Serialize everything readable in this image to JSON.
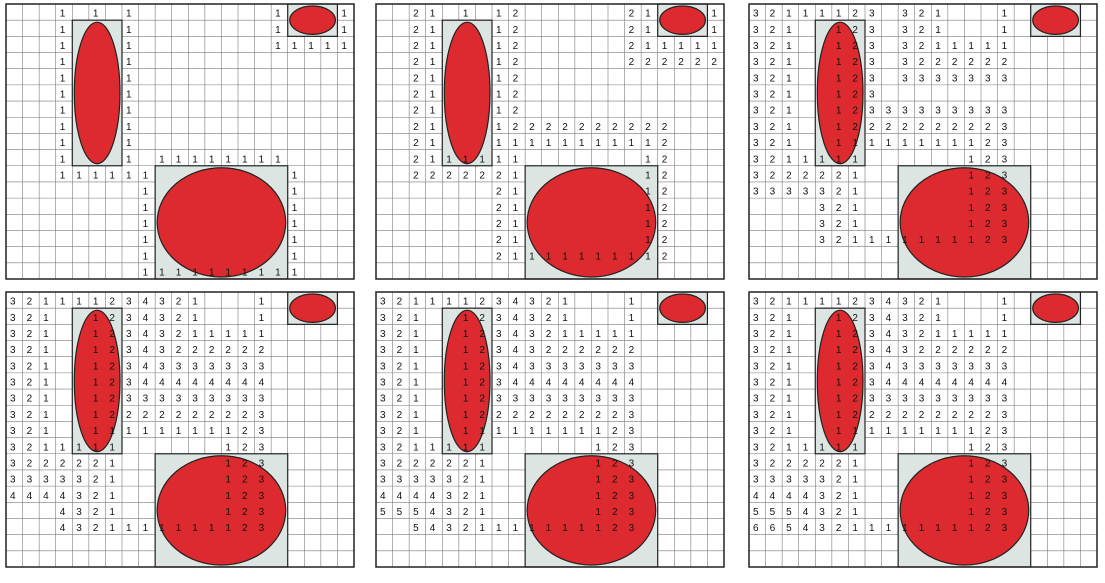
{
  "grid": {
    "rows": 17,
    "cols": 21
  },
  "colors": {
    "obstacle_fill": "#dc2a2e",
    "obstacle_box": "#dde5e2",
    "grid_line": "#7a7a7a",
    "border": "#222222"
  },
  "obstacles": [
    {
      "name": "vertical-ellipse-obstacle",
      "shape": "ellipse",
      "r0": 1,
      "c0": 4,
      "r1": 10,
      "c1": 7
    },
    {
      "name": "small-circle-obstacle",
      "shape": "ellipse",
      "r0": 0,
      "c0": 17,
      "r1": 2,
      "c1": 20
    },
    {
      "name": "large-ellipse-obstacle",
      "shape": "ellipse",
      "r0": 10,
      "c0": 9,
      "r1": 17,
      "c1": 17
    }
  ],
  "panels": [
    {
      "name": "panel-step-1",
      "labels": [
        "r0c3:1",
        "r0c5:1",
        "r0c7:1",
        "r0c16:1",
        "r0c20:1",
        "r1c3:1",
        "r1c7:1",
        "r1c16:1",
        "r1c20:1",
        "r2c3:1",
        "r2c7:1",
        "r2c16:1",
        "r2c17:1",
        "r2c18:1",
        "r2c19:1",
        "r2c20:1",
        "r3c3:1",
        "r3c7:1",
        "r4c3:1",
        "r4c7:1",
        "r5c3:1",
        "r5c7:1",
        "r6c3:1",
        "r6c7:1",
        "r7c3:1",
        "r7c7:1",
        "r8c3:1",
        "r8c7:1",
        "r9c3:1",
        "r9c7:1",
        "r9c9:1",
        "r9c10:1",
        "r9c11:1",
        "r9c12:1",
        "r9c13:1",
        "r9c14:1",
        "r9c15:1",
        "r9c16:1",
        "r10c3:1",
        "r10c4:1",
        "r10c5:1",
        "r10c6:1",
        "r10c7:1",
        "r10c8:1",
        "r10c17:1",
        "r11c8:1",
        "r11c17:1",
        "r12c8:1",
        "r12c17:1",
        "r13c8:1",
        "r13c17:1",
        "r14c8:1",
        "r14c17:1",
        "r15c8:1",
        "r15c17:1",
        "r16c8:1",
        "r16c9:1",
        "r16c10:1",
        "r16c11:1",
        "r16c12:1",
        "r16c13:1",
        "r16c14:1",
        "r16c15:1",
        "r16c16:1",
        "r16c17:1"
      ]
    },
    {
      "name": "panel-step-2",
      "labels": [
        "r0c2:2",
        "r0c3:1",
        "r0c5:1",
        "r0c7:1",
        "r0c8:2",
        "r0c15:2",
        "r0c16:1",
        "r0c20:1",
        "r1c2:2",
        "r1c3:1",
        "r1c7:1",
        "r1c8:2",
        "r1c15:2",
        "r1c16:1",
        "r1c20:1",
        "r2c2:2",
        "r2c3:1",
        "r2c7:1",
        "r2c8:2",
        "r2c15:2",
        "r2c16:1",
        "r2c17:1",
        "r2c18:1",
        "r2c19:1",
        "r2c20:1",
        "r3c2:2",
        "r3c3:1",
        "r3c7:1",
        "r3c8:2",
        "r3c15:2",
        "r3c16:2",
        "r3c17:2",
        "r3c18:2",
        "r3c19:2",
        "r3c20:2",
        "r4c2:2",
        "r4c3:1",
        "r4c7:1",
        "r4c8:2",
        "r5c2:2",
        "r5c3:1",
        "r5c7:1",
        "r5c8:2",
        "r6c2:2",
        "r6c3:1",
        "r6c7:1",
        "r6c8:2",
        "r7c2:2",
        "r7c3:1",
        "r7c7:1",
        "r7c8:2",
        "r7c9:2",
        "r7c10:2",
        "r7c11:2",
        "r7c12:2",
        "r7c13:2",
        "r7c14:2",
        "r7c15:2",
        "r7c16:2",
        "r7c17:2",
        "r8c2:2",
        "r8c3:1",
        "r8c7:1",
        "r8c8:1",
        "r8c9:1",
        "r8c10:1",
        "r8c11:1",
        "r8c12:1",
        "r8c13:1",
        "r8c14:1",
        "r8c15:1",
        "r8c16:1",
        "r8c17:2",
        "r9c2:2",
        "r9c3:1",
        "r9c4:1",
        "r9c5:1",
        "r9c6:1",
        "r9c7:1",
        "r9c8:1",
        "r9c16:1",
        "r9c17:2",
        "r10c2:2",
        "r10c3:2",
        "r10c4:2",
        "r10c5:2",
        "r10c6:2",
        "r10c7:2",
        "r10c8:1",
        "r10c16:1",
        "r10c17:2",
        "r11c7:2",
        "r11c8:1",
        "r11c16:1",
        "r11c17:2",
        "r12c7:2",
        "r12c8:1",
        "r12c16:1",
        "r12c17:2",
        "r13c7:2",
        "r13c8:1",
        "r13c16:1",
        "r13c17:2",
        "r14c7:2",
        "r14c8:1",
        "r14c16:1",
        "r14c17:2",
        "r15c7:2",
        "r15c8:1",
        "r15c9:1",
        "r15c10:1",
        "r15c11:1",
        "r15c12:1",
        "r15c13:1",
        "r15c14:1",
        "r15c15:1",
        "r15c16:1",
        "r15c17:2"
      ]
    },
    {
      "name": "panel-step-3",
      "labels": [
        "r0c0:3",
        "r0c1:2",
        "r0c2:1",
        "r0c3:1",
        "r0c4:1",
        "r0c5:1",
        "r0c6:2",
        "r0c7:3",
        "r0c9:3",
        "r0c10:2",
        "r0c11:1",
        "r0c15:1",
        "r1c0:3",
        "r1c1:2",
        "r1c2:1",
        "r1c5:1",
        "r1c6:2",
        "r1c7:3",
        "r1c9:3",
        "r1c10:2",
        "r1c11:1",
        "r1c15:1",
        "r2c0:3",
        "r2c1:2",
        "r2c2:1",
        "r2c5:1",
        "r2c6:2",
        "r2c7:3",
        "r2c9:3",
        "r2c10:2",
        "r2c11:1",
        "r2c12:1",
        "r2c13:1",
        "r2c14:1",
        "r2c15:1",
        "r3c0:3",
        "r3c1:2",
        "r3c2:1",
        "r3c5:1",
        "r3c6:2",
        "r3c7:3",
        "r3c9:3",
        "r3c10:2",
        "r3c11:2",
        "r3c12:2",
        "r3c13:2",
        "r3c14:2",
        "r3c15:2",
        "r4c0:3",
        "r4c1:2",
        "r4c2:1",
        "r4c5:1",
        "r4c6:2",
        "r4c7:3",
        "r4c9:3",
        "r4c10:3",
        "r4c11:3",
        "r4c12:3",
        "r4c13:3",
        "r4c14:3",
        "r4c15:3",
        "r5c0:3",
        "r5c1:2",
        "r5c2:1",
        "r5c5:1",
        "r5c6:2",
        "r5c7:3",
        "r6c0:3",
        "r6c1:2",
        "r6c2:1",
        "r6c5:1",
        "r6c6:2",
        "r6c7:3",
        "r6c8:3",
        "r6c9:3",
        "r6c10:3",
        "r6c11:3",
        "r6c12:3",
        "r6c13:3",
        "r6c14:3",
        "r6c15:3",
        "r7c0:3",
        "r7c1:2",
        "r7c2:1",
        "r7c5:1",
        "r7c6:2",
        "r7c7:2",
        "r7c8:2",
        "r7c9:2",
        "r7c10:2",
        "r7c11:2",
        "r7c12:2",
        "r7c13:2",
        "r7c14:2",
        "r7c15:3",
        "r8c0:3",
        "r8c1:2",
        "r8c2:1",
        "r8c5:1",
        "r8c6:1",
        "r8c7:1",
        "r8c8:1",
        "r8c9:1",
        "r8c10:1",
        "r8c11:1",
        "r8c12:1",
        "r8c13:1",
        "r8c14:2",
        "r8c15:3",
        "r9c0:3",
        "r9c1:2",
        "r9c2:1",
        "r9c3:1",
        "r9c4:1",
        "r9c5:1",
        "r9c6:1",
        "r9c13:1",
        "r9c14:2",
        "r9c15:3",
        "r10c0:3",
        "r10c1:2",
        "r10c2:2",
        "r10c3:2",
        "r10c4:2",
        "r10c5:2",
        "r10c6:1",
        "r10c13:1",
        "r10c14:2",
        "r10c15:3",
        "r11c0:3",
        "r11c1:3",
        "r11c2:3",
        "r11c3:3",
        "r11c4:3",
        "r11c5:2",
        "r11c6:1",
        "r11c13:1",
        "r11c14:2",
        "r11c15:3",
        "r12c4:3",
        "r12c5:2",
        "r12c6:1",
        "r12c13:1",
        "r12c14:2",
        "r12c15:3",
        "r13c4:3",
        "r13c5:2",
        "r13c6:1",
        "r13c13:1",
        "r13c14:2",
        "r13c15:3",
        "r14c4:3",
        "r14c5:2",
        "r14c6:1",
        "r14c7:1",
        "r14c8:1",
        "r14c9:1",
        "r14c10:1",
        "r14c11:1",
        "r14c12:1",
        "r14c13:1",
        "r14c14:2",
        "r14c15:3"
      ]
    },
    {
      "name": "panel-step-4",
      "labels": [
        "r0c0:3",
        "r0c1:2",
        "r0c2:1",
        "r0c3:1",
        "r0c4:1",
        "r0c5:1",
        "r0c6:2",
        "r0c7:3",
        "r0c8:4",
        "r0c9:3",
        "r0c10:2",
        "r0c11:1",
        "r0c15:1",
        "r1c0:3",
        "r1c1:2",
        "r1c2:1",
        "r1c5:1",
        "r1c6:2",
        "r1c7:3",
        "r1c8:4",
        "r1c9:3",
        "r1c10:2",
        "r1c11:1",
        "r1c15:1",
        "r2c0:3",
        "r2c1:2",
        "r2c2:1",
        "r2c5:1",
        "r2c6:2",
        "r2c7:3",
        "r2c8:4",
        "r2c9:3",
        "r2c10:2",
        "r2c11:1",
        "r2c12:1",
        "r2c13:1",
        "r2c14:1",
        "r2c15:1",
        "r3c0:3",
        "r3c1:2",
        "r3c2:1",
        "r3c5:1",
        "r3c6:2",
        "r3c7:3",
        "r3c8:4",
        "r3c9:3",
        "r3c10:2",
        "r3c11:2",
        "r3c12:2",
        "r3c13:2",
        "r3c14:2",
        "r3c15:2",
        "r4c0:3",
        "r4c1:2",
        "r4c2:1",
        "r4c5:1",
        "r4c6:2",
        "r4c7:3",
        "r4c8:4",
        "r4c9:3",
        "r4c10:3",
        "r4c11:3",
        "r4c12:3",
        "r4c13:3",
        "r4c14:3",
        "r4c15:3",
        "r5c0:3",
        "r5c1:2",
        "r5c2:1",
        "r5c5:1",
        "r5c6:2",
        "r5c7:3",
        "r5c8:4",
        "r5c9:4",
        "r5c10:4",
        "r5c11:4",
        "r5c12:4",
        "r5c13:4",
        "r5c14:4",
        "r5c15:4",
        "r6c0:3",
        "r6c1:2",
        "r6c2:1",
        "r6c5:1",
        "r6c6:2",
        "r6c7:3",
        "r6c8:3",
        "r6c9:3",
        "r6c10:3",
        "r6c11:3",
        "r6c12:3",
        "r6c13:3",
        "r6c14:3",
        "r6c15:3",
        "r7c0:3",
        "r7c1:2",
        "r7c2:1",
        "r7c5:1",
        "r7c6:2",
        "r7c7:2",
        "r7c8:2",
        "r7c9:2",
        "r7c10:2",
        "r7c11:2",
        "r7c12:2",
        "r7c13:2",
        "r7c14:2",
        "r7c15:3",
        "r8c0:3",
        "r8c1:2",
        "r8c2:1",
        "r8c5:1",
        "r8c6:1",
        "r8c7:1",
        "r8c8:1",
        "r8c9:1",
        "r8c10:1",
        "r8c11:1",
        "r8c12:1",
        "r8c13:1",
        "r8c14:2",
        "r8c15:3",
        "r9c0:3",
        "r9c1:2",
        "r9c2:1",
        "r9c3:1",
        "r9c4:1",
        "r9c5:1",
        "r9c6:1",
        "r9c13:1",
        "r9c14:2",
        "r9c15:3",
        "r10c0:3",
        "r10c1:2",
        "r10c2:2",
        "r10c3:2",
        "r10c4:2",
        "r10c5:2",
        "r10c6:1",
        "r10c13:1",
        "r10c14:2",
        "r10c15:3",
        "r11c0:3",
        "r11c1:3",
        "r11c2:3",
        "r11c3:3",
        "r11c4:3",
        "r11c5:2",
        "r11c6:1",
        "r11c13:1",
        "r11c14:2",
        "r11c15:3",
        "r12c0:4",
        "r12c1:4",
        "r12c2:4",
        "r12c3:4",
        "r12c4:3",
        "r12c5:2",
        "r12c6:1",
        "r12c13:1",
        "r12c14:2",
        "r12c15:3",
        "r13c3:4",
        "r13c4:3",
        "r13c5:2",
        "r13c6:1",
        "r13c13:1",
        "r13c14:2",
        "r13c15:3",
        "r14c3:4",
        "r14c4:3",
        "r14c5:2",
        "r14c6:1",
        "r14c7:1",
        "r14c8:1",
        "r14c9:1",
        "r14c10:1",
        "r14c11:1",
        "r14c12:1",
        "r14c13:1",
        "r14c14:2",
        "r14c15:3"
      ]
    },
    {
      "name": "panel-step-5",
      "labels": [
        "r0c0:3",
        "r0c1:2",
        "r0c2:1",
        "r0c3:1",
        "r0c4:1",
        "r0c5:1",
        "r0c6:2",
        "r0c7:3",
        "r0c8:4",
        "r0c9:3",
        "r0c10:2",
        "r0c11:1",
        "r0c15:1",
        "r1c0:3",
        "r1c1:2",
        "r1c2:1",
        "r1c5:1",
        "r1c6:2",
        "r1c7:3",
        "r1c8:4",
        "r1c9:3",
        "r1c10:2",
        "r1c11:1",
        "r1c15:1",
        "r2c0:3",
        "r2c1:2",
        "r2c2:1",
        "r2c5:1",
        "r2c6:2",
        "r2c7:3",
        "r2c8:4",
        "r2c9:3",
        "r2c10:2",
        "r2c11:1",
        "r2c12:1",
        "r2c13:1",
        "r2c14:1",
        "r2c15:1",
        "r3c0:3",
        "r3c1:2",
        "r3c2:1",
        "r3c5:1",
        "r3c6:2",
        "r3c7:3",
        "r3c8:4",
        "r3c9:3",
        "r3c10:2",
        "r3c11:2",
        "r3c12:2",
        "r3c13:2",
        "r3c14:2",
        "r3c15:2",
        "r4c0:3",
        "r4c1:2",
        "r4c2:1",
        "r4c5:1",
        "r4c6:2",
        "r4c7:3",
        "r4c8:4",
        "r4c9:3",
        "r4c10:3",
        "r4c11:3",
        "r4c12:3",
        "r4c13:3",
        "r4c14:3",
        "r4c15:3",
        "r5c0:3",
        "r5c1:2",
        "r5c2:1",
        "r5c5:1",
        "r5c6:2",
        "r5c7:3",
        "r5c8:4",
        "r5c9:4",
        "r5c10:4",
        "r5c11:4",
        "r5c12:4",
        "r5c13:4",
        "r5c14:4",
        "r5c15:4",
        "r6c0:3",
        "r6c1:2",
        "r6c2:1",
        "r6c5:1",
        "r6c6:2",
        "r6c7:3",
        "r6c8:3",
        "r6c9:3",
        "r6c10:3",
        "r6c11:3",
        "r6c12:3",
        "r6c13:3",
        "r6c14:3",
        "r6c15:3",
        "r7c0:3",
        "r7c1:2",
        "r7c2:1",
        "r7c5:1",
        "r7c6:2",
        "r7c7:2",
        "r7c8:2",
        "r7c9:2",
        "r7c10:2",
        "r7c11:2",
        "r7c12:2",
        "r7c13:2",
        "r7c14:2",
        "r7c15:3",
        "r8c0:3",
        "r8c1:2",
        "r8c2:1",
        "r8c5:1",
        "r8c6:1",
        "r8c7:1",
        "r8c8:1",
        "r8c9:1",
        "r8c10:1",
        "r8c11:1",
        "r8c12:1",
        "r8c13:1",
        "r8c14:2",
        "r8c15:3",
        "r9c0:3",
        "r9c1:2",
        "r9c2:1",
        "r9c3:1",
        "r9c4:1",
        "r9c5:1",
        "r9c6:1",
        "r9c13:1",
        "r9c14:2",
        "r9c15:3",
        "r10c0:3",
        "r10c1:2",
        "r10c2:2",
        "r10c3:2",
        "r10c4:2",
        "r10c5:2",
        "r10c6:1",
        "r10c13:1",
        "r10c14:2",
        "r10c15:3",
        "r11c0:3",
        "r11c1:3",
        "r11c2:3",
        "r11c3:3",
        "r11c4:3",
        "r11c5:2",
        "r11c6:1",
        "r11c13:1",
        "r11c14:2",
        "r11c15:3",
        "r12c0:4",
        "r12c1:4",
        "r12c2:4",
        "r12c3:4",
        "r12c4:3",
        "r12c5:2",
        "r12c6:1",
        "r12c13:1",
        "r12c14:2",
        "r12c15:3",
        "r13c0:5",
        "r13c1:5",
        "r13c2:5",
        "r13c3:4",
        "r13c4:3",
        "r13c5:2",
        "r13c6:1",
        "r13c13:1",
        "r13c14:2",
        "r13c15:3",
        "r14c2:5",
        "r14c3:4",
        "r14c4:3",
        "r14c5:2",
        "r14c6:1",
        "r14c7:1",
        "r14c8:1",
        "r14c9:1",
        "r14c10:1",
        "r14c11:1",
        "r14c12:1",
        "r14c13:1",
        "r14c14:2",
        "r14c15:3"
      ]
    },
    {
      "name": "panel-step-6",
      "labels": [
        "r0c0:3",
        "r0c1:2",
        "r0c2:1",
        "r0c3:1",
        "r0c4:1",
        "r0c5:1",
        "r0c6:2",
        "r0c7:3",
        "r0c8:4",
        "r0c9:3",
        "r0c10:2",
        "r0c11:1",
        "r0c15:1",
        "r1c0:3",
        "r1c1:2",
        "r1c2:1",
        "r1c5:1",
        "r1c6:2",
        "r1c7:3",
        "r1c8:4",
        "r1c9:3",
        "r1c10:2",
        "r1c11:1",
        "r1c15:1",
        "r2c0:3",
        "r2c1:2",
        "r2c2:1",
        "r2c5:1",
        "r2c6:2",
        "r2c7:3",
        "r2c8:4",
        "r2c9:3",
        "r2c10:2",
        "r2c11:1",
        "r2c12:1",
        "r2c13:1",
        "r2c14:1",
        "r2c15:1",
        "r3c0:3",
        "r3c1:2",
        "r3c2:1",
        "r3c5:1",
        "r3c6:2",
        "r3c7:3",
        "r3c8:4",
        "r3c9:3",
        "r3c10:2",
        "r3c11:2",
        "r3c12:2",
        "r3c13:2",
        "r3c14:2",
        "r3c15:2",
        "r4c0:3",
        "r4c1:2",
        "r4c2:1",
        "r4c5:1",
        "r4c6:2",
        "r4c7:3",
        "r4c8:4",
        "r4c9:3",
        "r4c10:3",
        "r4c11:3",
        "r4c12:3",
        "r4c13:3",
        "r4c14:3",
        "r4c15:3",
        "r5c0:3",
        "r5c1:2",
        "r5c2:1",
        "r5c5:1",
        "r5c6:2",
        "r5c7:3",
        "r5c8:4",
        "r5c9:4",
        "r5c10:4",
        "r5c11:4",
        "r5c12:4",
        "r5c13:4",
        "r5c14:4",
        "r5c15:4",
        "r6c0:3",
        "r6c1:2",
        "r6c2:1",
        "r6c5:1",
        "r6c6:2",
        "r6c7:3",
        "r6c8:3",
        "r6c9:3",
        "r6c10:3",
        "r6c11:3",
        "r6c12:3",
        "r6c13:3",
        "r6c14:3",
        "r6c15:3",
        "r7c0:3",
        "r7c1:2",
        "r7c2:1",
        "r7c5:1",
        "r7c6:2",
        "r7c7:2",
        "r7c8:2",
        "r7c9:2",
        "r7c10:2",
        "r7c11:2",
        "r7c12:2",
        "r7c13:2",
        "r7c14:2",
        "r7c15:3",
        "r8c0:3",
        "r8c1:2",
        "r8c2:1",
        "r8c5:1",
        "r8c6:1",
        "r8c7:1",
        "r8c8:1",
        "r8c9:1",
        "r8c10:1",
        "r8c11:1",
        "r8c12:1",
        "r8c13:1",
        "r8c14:2",
        "r8c15:3",
        "r9c0:3",
        "r9c1:2",
        "r9c2:1",
        "r9c3:1",
        "r9c4:1",
        "r9c5:1",
        "r9c6:1",
        "r9c13:1",
        "r9c14:2",
        "r9c15:3",
        "r10c0:3",
        "r10c1:2",
        "r10c2:2",
        "r10c3:2",
        "r10c4:2",
        "r10c5:2",
        "r10c6:1",
        "r10c13:1",
        "r10c14:2",
        "r10c15:3",
        "r11c0:3",
        "r11c1:3",
        "r11c2:3",
        "r11c3:3",
        "r11c4:3",
        "r11c5:2",
        "r11c6:1",
        "r11c13:1",
        "r11c14:2",
        "r11c15:3",
        "r12c0:4",
        "r12c1:4",
        "r12c2:4",
        "r12c3:4",
        "r12c4:3",
        "r12c5:2",
        "r12c6:1",
        "r12c13:1",
        "r12c14:2",
        "r12c15:3",
        "r13c0:5",
        "r13c1:5",
        "r13c2:5",
        "r13c3:4",
        "r13c4:3",
        "r13c5:2",
        "r13c6:1",
        "r13c13:1",
        "r13c14:2",
        "r13c15:3",
        "r14c0:6",
        "r14c1:6",
        "r14c2:5",
        "r14c3:4",
        "r14c4:3",
        "r14c5:2",
        "r14c6:1",
        "r14c7:1",
        "r14c8:1",
        "r14c9:1",
        "r14c10:1",
        "r14c11:1",
        "r14c12:1",
        "r14c13:1",
        "r14c14:2",
        "r14c15:3"
      ]
    }
  ]
}
